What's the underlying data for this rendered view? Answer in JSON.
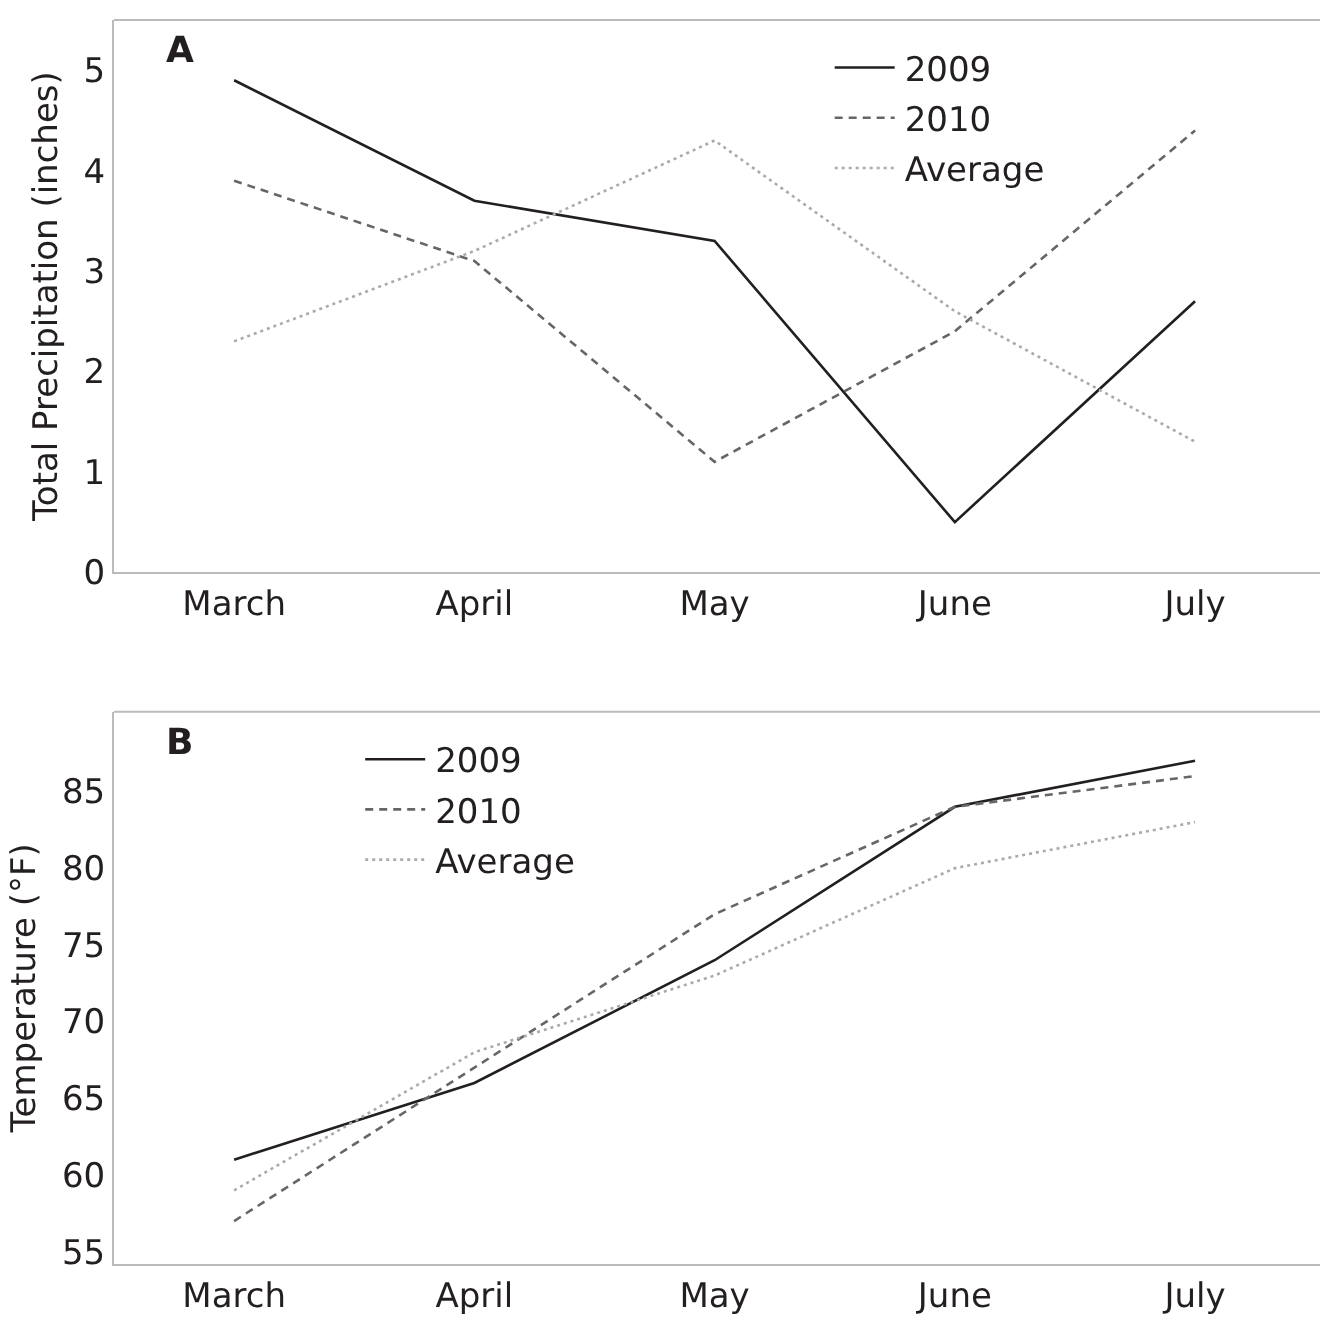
{
  "chart_data": [
    {
      "type": "line",
      "title": "A",
      "ylabel": "Total Precipitation (inches)",
      "categories": [
        "March",
        "April",
        "May",
        "June",
        "July"
      ],
      "ylim": [
        0,
        5.5
      ],
      "yticks": [
        0,
        1,
        2,
        3,
        4,
        5
      ],
      "legend": "top right",
      "marker": "none",
      "series": [
        {
          "name": "2009",
          "color": "#231f20",
          "line_style": "solid",
          "values": [
            4.9,
            3.7,
            3.3,
            0.5,
            2.7
          ]
        },
        {
          "name": "2010",
          "color": "#666666",
          "line_style": "dashed",
          "values": [
            3.9,
            3.1,
            1.1,
            2.4,
            4.4
          ]
        },
        {
          "name": "Average",
          "color": "#aaaaaa",
          "line_style": "dotted",
          "values": [
            2.3,
            3.2,
            4.3,
            2.6,
            1.3
          ]
        }
      ]
    },
    {
      "type": "line",
      "title": "B",
      "ylabel": "Temperature (°F)",
      "categories": [
        "March",
        "April",
        "May",
        "June",
        "July"
      ],
      "ylim": [
        54.2,
        90.2
      ],
      "yticks": [
        55,
        60,
        65,
        70,
        75,
        80,
        85
      ],
      "legend": "top left",
      "marker": "none",
      "series": [
        {
          "name": "2009",
          "color": "#231f20",
          "line_style": "solid",
          "values": [
            61,
            66,
            74,
            84,
            87
          ]
        },
        {
          "name": "2010",
          "color": "#666666",
          "line_style": "dashed",
          "values": [
            57,
            67,
            77,
            84,
            86
          ]
        },
        {
          "name": "Average",
          "color": "#aaaaaa",
          "line_style": "dotted",
          "values": [
            59,
            68,
            73,
            80,
            83
          ]
        }
      ]
    }
  ]
}
